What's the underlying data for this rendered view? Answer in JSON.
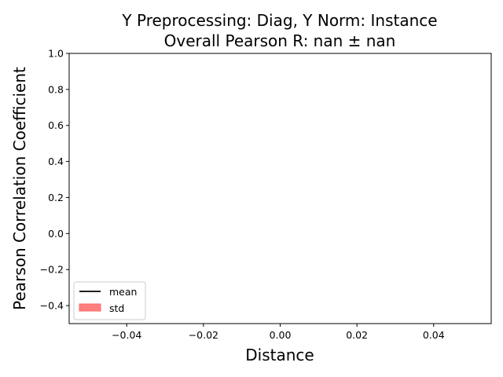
{
  "chart_data": {
    "type": "line",
    "title_lines": [
      "Y Preprocessing: Diag, Y Norm: Instance",
      "Overall Pearson R: nan ± nan"
    ],
    "xlabel": "Distance",
    "ylabel": "Pearson Correlation Coefficient",
    "xlim": [
      -0.055,
      0.055
    ],
    "ylim": [
      -0.5,
      1.0
    ],
    "xticks": [
      -0.04,
      -0.02,
      0.0,
      0.02,
      0.04
    ],
    "xtick_labels": [
      "−0.04",
      "−0.02",
      "0.00",
      "0.02",
      "0.04"
    ],
    "yticks": [
      -0.4,
      -0.2,
      0.0,
      0.2,
      0.4,
      0.6,
      0.8,
      1.0
    ],
    "ytick_labels": [
      "−0.4",
      "−0.2",
      "0.0",
      "0.2",
      "0.4",
      "0.6",
      "0.8",
      "1.0"
    ],
    "grid": false,
    "legend_placement": "lower-left",
    "series": [
      {
        "name": "mean",
        "kind": "line",
        "color": "#000000",
        "x": [],
        "y": []
      },
      {
        "name": "std",
        "kind": "band",
        "color": "#ff7f7f",
        "x": [],
        "y_low": [],
        "y_high": []
      }
    ]
  }
}
